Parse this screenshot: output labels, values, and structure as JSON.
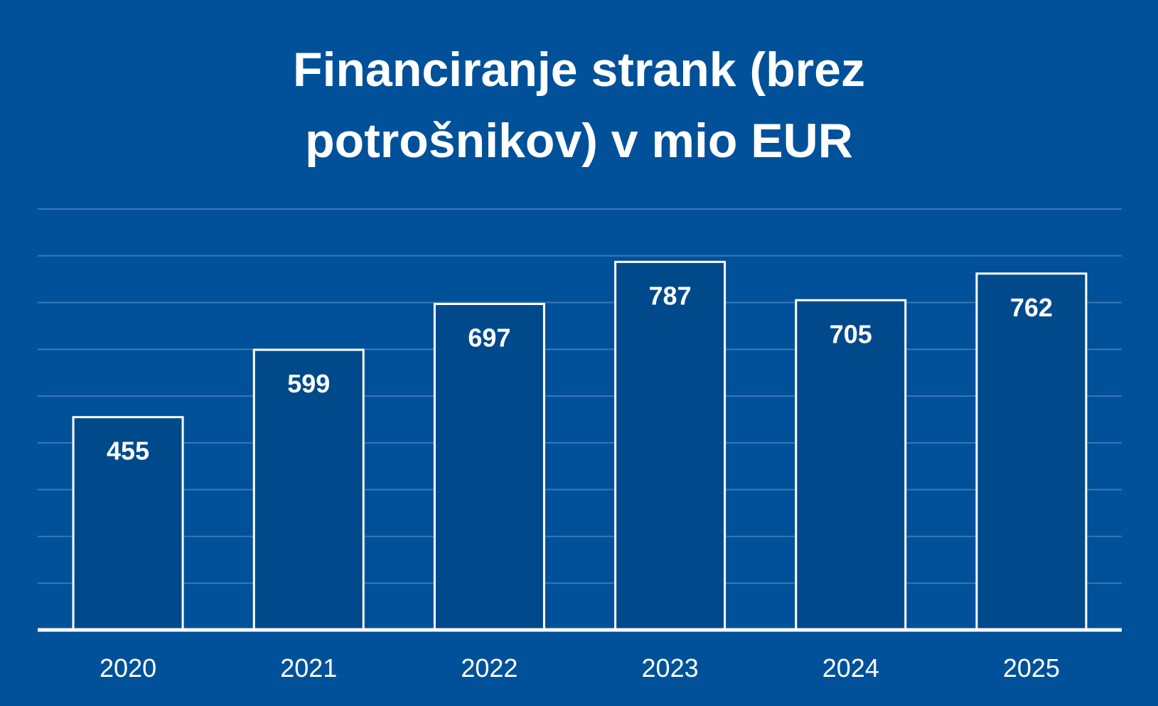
{
  "chart_data": {
    "type": "bar",
    "title_lines": [
      "Financiranje strank (brez",
      "potrošnikov) v mio EUR"
    ],
    "categories": [
      "2020",
      "2021",
      "2022",
      "2023",
      "2024",
      "2025"
    ],
    "values": [
      455,
      599,
      697,
      787,
      705,
      762
    ],
    "ylim": [
      0,
      900
    ],
    "grid": true,
    "legend": "none",
    "colors": {
      "background": "#005199",
      "bar_fill": "#004a8c",
      "bar_stroke": "#ffffff",
      "gridline": "#3a78b5",
      "text": "#ffffff"
    }
  }
}
